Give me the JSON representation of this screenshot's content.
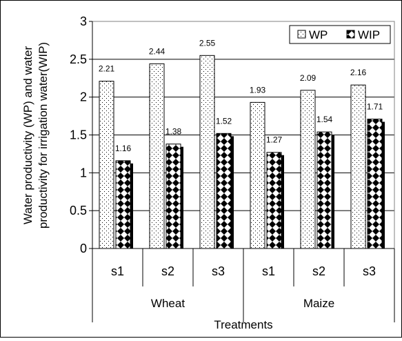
{
  "chart_data": {
    "type": "bar",
    "title": "",
    "xlabel": "Treatments",
    "ylabel": "Water productivity (WP) and water productivity for irrigation water(WIP)",
    "ylim": [
      0,
      3
    ],
    "yticks": [
      "0",
      "0.5",
      "1",
      "1.5",
      "2",
      "2.5",
      "3"
    ],
    "grid": "horizontal",
    "legend_position": "top-right",
    "groups": [
      {
        "label": "Wheat",
        "categories": [
          "s1",
          "s2",
          "s3"
        ]
      },
      {
        "label": "Maize",
        "categories": [
          "s1",
          "s2",
          "s3"
        ]
      }
    ],
    "series": [
      {
        "name": "WP",
        "values": [
          2.21,
          2.44,
          2.55,
          1.93,
          2.09,
          2.16
        ],
        "labels": [
          "2.21",
          "2.44",
          "2.55",
          "1.93",
          "2.09",
          "2.16"
        ],
        "pattern": "dots"
      },
      {
        "name": "WIP",
        "values": [
          1.16,
          1.38,
          1.52,
          1.27,
          1.54,
          1.71
        ],
        "labels": [
          "1.16",
          "1.38",
          "1.52",
          "1.27",
          "1.54",
          "1.71"
        ],
        "pattern": "checker"
      }
    ]
  }
}
